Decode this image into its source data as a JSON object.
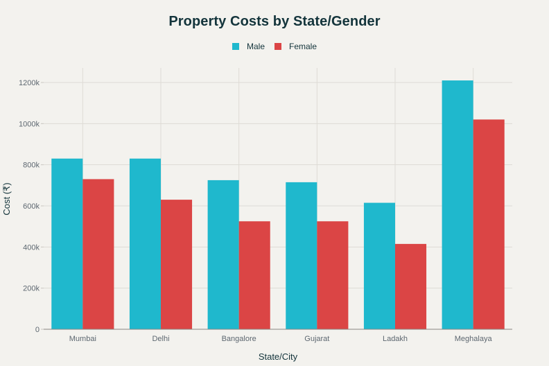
{
  "chart_data": {
    "type": "bar",
    "title": "Property Costs by State/Gender",
    "xlabel": "State/City",
    "ylabel": "Cost (₹)",
    "categories": [
      "Mumbai",
      "Delhi",
      "Bangalore",
      "Gujarat",
      "Ladakh",
      "Meghalaya"
    ],
    "series": [
      {
        "name": "Male",
        "color": "#1fb8cd",
        "values": [
          830000,
          830000,
          725000,
          715000,
          615000,
          1210000
        ]
      },
      {
        "name": "Female",
        "color": "#db4545",
        "values": [
          730000,
          630000,
          525000,
          525000,
          415000,
          1020000
        ]
      }
    ],
    "ylim": [
      0,
      1270000
    ],
    "yticks": [
      0,
      200000,
      400000,
      600000,
      800000,
      1000000,
      1200000
    ],
    "ytick_labels": [
      "0",
      "200k",
      "400k",
      "600k",
      "800k",
      "1000k",
      "1200k"
    ],
    "grid": true,
    "legend_position": "top-center"
  }
}
